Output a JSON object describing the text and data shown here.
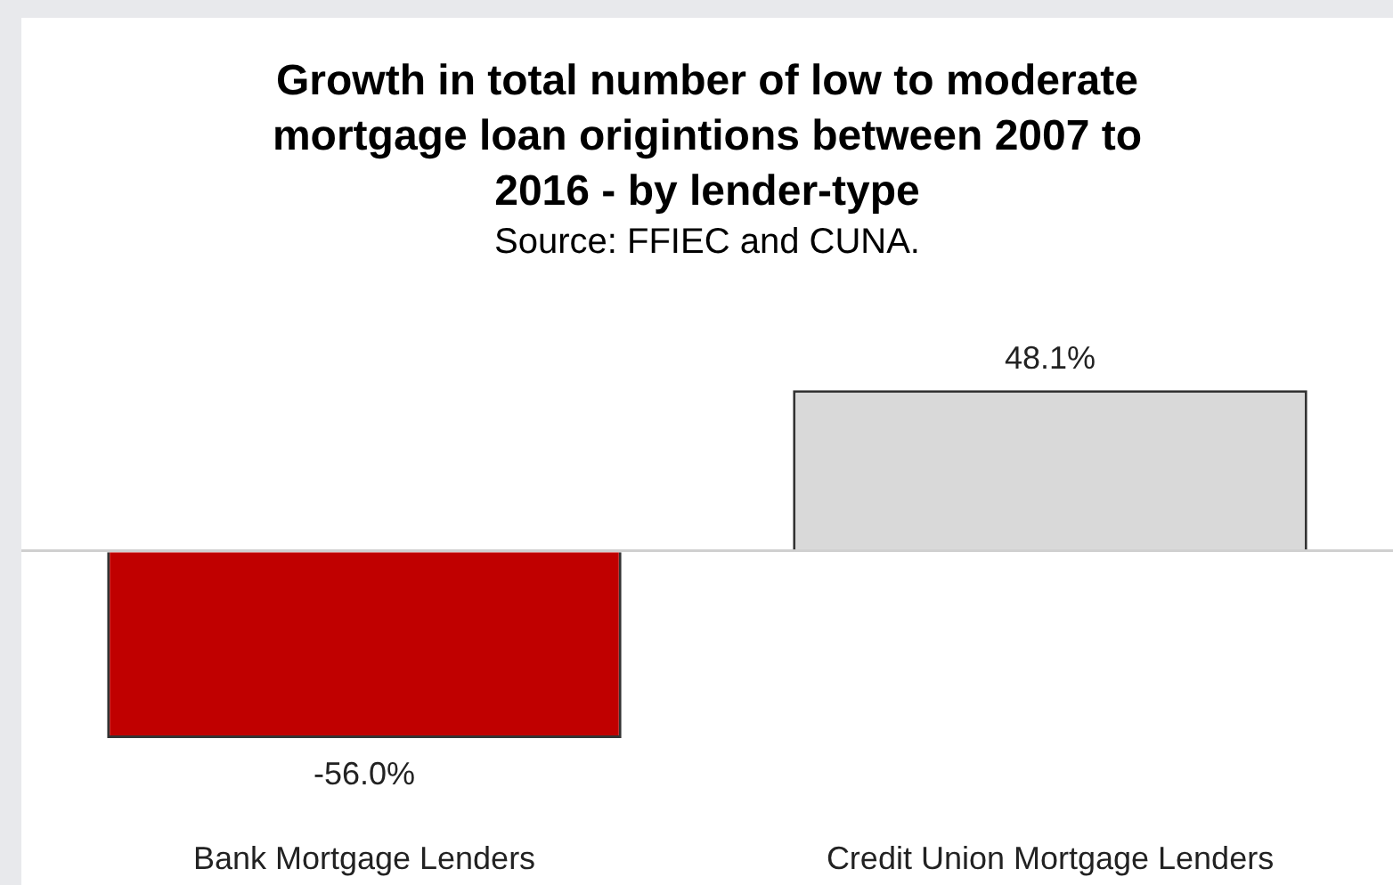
{
  "chart_data": {
    "type": "bar",
    "title": "Growth in total number of low to moderate mortgage loan origintions between 2007 to 2016 - by lender-type",
    "subtitle": "Source: FFIEC and CUNA.",
    "categories": [
      "Bank Mortgage Lenders",
      "Credit Union Mortgage Lenders"
    ],
    "values": [
      -56.0,
      48.1
    ],
    "colors": [
      "#c00000",
      "#d9d9d9"
    ],
    "value_labels": [
      "-56.0%",
      "48.1%"
    ],
    "grid": false,
    "legend": false
  }
}
